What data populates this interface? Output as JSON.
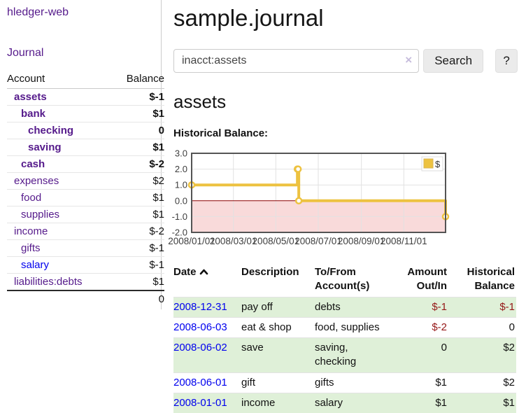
{
  "app": {
    "brand": "hledger-web",
    "nav_journal": "Journal"
  },
  "sidebar": {
    "header": {
      "account": "Account",
      "balance": "Balance"
    },
    "accounts": [
      {
        "name": "assets",
        "balance": "$-1",
        "level": 1,
        "em": true,
        "tone": "neg-strong",
        "link": "purple"
      },
      {
        "name": "bank",
        "balance": "$1",
        "level": 2,
        "em": true,
        "tone": "normal",
        "link": "purple"
      },
      {
        "name": "checking",
        "balance": "0",
        "level": 3,
        "em": true,
        "tone": "normal",
        "link": "purple"
      },
      {
        "name": "saving",
        "balance": "$1",
        "level": 3,
        "em": true,
        "tone": "normal",
        "link": "purple"
      },
      {
        "name": "cash",
        "balance": "$-2",
        "level": 2,
        "em": true,
        "tone": "neg-strong",
        "link": "purple"
      },
      {
        "name": "expenses",
        "balance": "$2",
        "level": 1,
        "em": false,
        "tone": "normal",
        "link": "purple"
      },
      {
        "name": "food",
        "balance": "$1",
        "level": 2,
        "em": false,
        "tone": "normal",
        "link": "purple"
      },
      {
        "name": "supplies",
        "balance": "$1",
        "level": 2,
        "em": false,
        "tone": "normal",
        "link": "purple"
      },
      {
        "name": "income",
        "balance": "$-2",
        "level": 1,
        "em": false,
        "tone": "neg-soft",
        "link": "purple"
      },
      {
        "name": "gifts",
        "balance": "$-1",
        "level": 2,
        "em": false,
        "tone": "neg-soft",
        "link": "purple"
      },
      {
        "name": "salary",
        "balance": "$-1",
        "level": 2,
        "em": false,
        "tone": "neg-soft",
        "link": "blue"
      },
      {
        "name": "liabilities:debts",
        "balance": "$1",
        "level": 1,
        "em": false,
        "tone": "normal",
        "link": "purple"
      }
    ],
    "total": "0"
  },
  "header": {
    "title": "sample.journal"
  },
  "search": {
    "value": "inacct:assets",
    "clear_icon": "×",
    "button_label": "Search",
    "help_label": "?"
  },
  "account_page": {
    "heading": "assets",
    "chart_label": "Historical Balance:"
  },
  "chart_data": {
    "type": "line",
    "title": "Historical Balance",
    "step": true,
    "series": [
      {
        "name": "$",
        "color": "#edc240",
        "points": [
          [
            "2008-01-01",
            1
          ],
          [
            "2008-06-01",
            2
          ],
          [
            "2008-06-02",
            2
          ],
          [
            "2008-06-03",
            0
          ],
          [
            "2008-12-31",
            -1
          ]
        ]
      }
    ],
    "xlim": [
      "2008-01-01",
      "2008-12-31"
    ],
    "ylim": [
      -2,
      3
    ],
    "x_ticks": [
      "2008/01/01",
      "2008/03/01",
      "2008/05/01",
      "2008/07/01",
      "2008/09/01",
      "2008/11/01"
    ],
    "y_ticks": [
      "3.0",
      "2.0",
      "1.0",
      "0.0",
      "-1.0",
      "-2.0"
    ],
    "legend": {
      "label": "$",
      "position": "top-right"
    },
    "grid": true,
    "grid_color": "#e2e2e2",
    "border_color": "#545454",
    "zero_line_color": "#8b0000",
    "negative_region_color": "#f9dada",
    "tick_label_color": "#3d3d3d"
  },
  "register": {
    "columns": [
      {
        "label": "Date",
        "sorted": "asc"
      },
      {
        "label": "Description"
      },
      {
        "label": "To/From Account(s)"
      },
      {
        "label": "Amount Out/In"
      },
      {
        "label": "Historical Balance"
      }
    ],
    "rows": [
      {
        "date": "2008-12-31",
        "description": "pay off",
        "accounts": "debts",
        "amount": "$-1",
        "balance": "$-1"
      },
      {
        "date": "2008-06-03",
        "description": "eat & shop",
        "accounts": "food, supplies",
        "amount": "$-2",
        "balance": "0"
      },
      {
        "date": "2008-06-02",
        "description": "save",
        "accounts": "saving, checking",
        "amount": "0",
        "balance": "$2"
      },
      {
        "date": "2008-06-01",
        "description": "gift",
        "accounts": "gifts",
        "amount": "$1",
        "balance": "$2"
      },
      {
        "date": "2008-01-01",
        "description": "income",
        "accounts": "salary",
        "amount": "$1",
        "balance": "$1"
      }
    ]
  }
}
